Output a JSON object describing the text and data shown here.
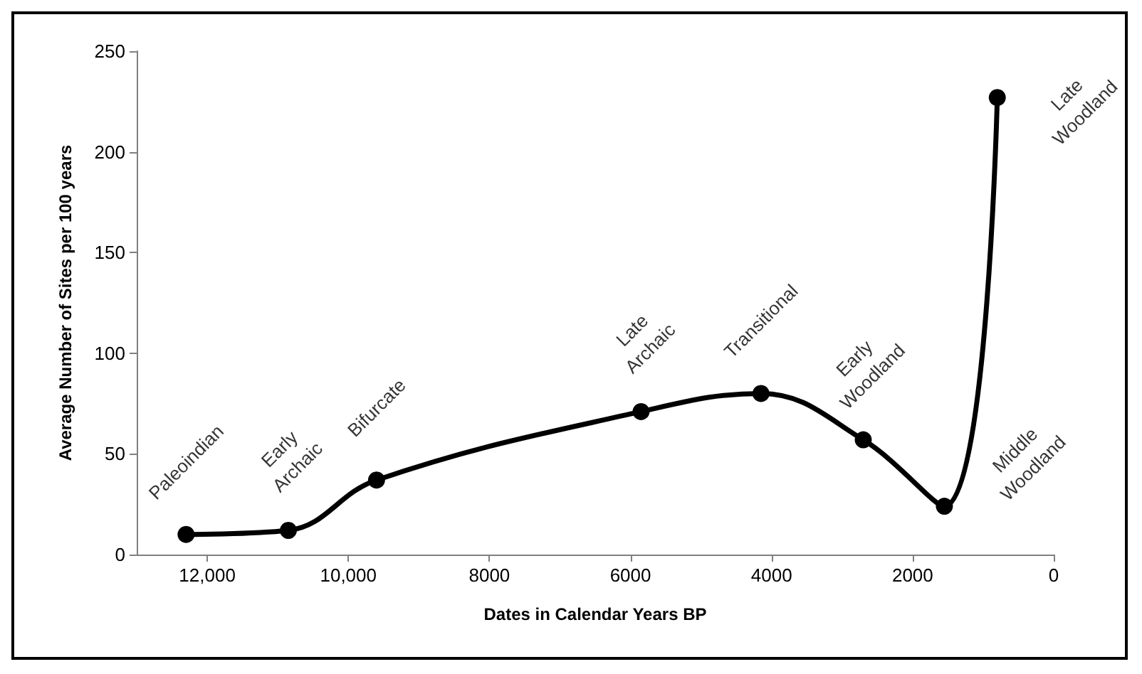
{
  "chart_data": {
    "type": "line",
    "xlabel": "Dates in Calendar Years BP",
    "ylabel": "Average Number of Sites per 100 years",
    "x": [
      12300,
      10850,
      9600,
      5850,
      4150,
      2700,
      1550,
      800
    ],
    "series": [
      {
        "color": "#000000",
        "values": [
          10,
          12,
          37,
          71,
          80,
          57,
          24,
          227
        ]
      }
    ],
    "xlim": [
      13000,
      0
    ],
    "xticks": [
      {
        "value": 12000,
        "label": "12,000"
      },
      {
        "value": 10000,
        "label": "10,000"
      },
      8000,
      6000,
      4000,
      2000,
      0
    ],
    "ylim": [
      0,
      250
    ],
    "yticks": [
      0,
      50,
      100,
      150,
      200,
      250
    ],
    "marker": "circle",
    "line_style": "solid",
    "grid": false,
    "annotations": [
      {
        "text": "Paleoindian",
        "x": 12300,
        "y": 10
      },
      {
        "text": "Early\nArchaic",
        "x": 10850,
        "y": 12
      },
      {
        "text": "Bifurcate",
        "x": 9600,
        "y": 37
      },
      {
        "text": "Late\nArchaic",
        "x": 5850,
        "y": 71
      },
      {
        "text": "Transitional",
        "x": 4150,
        "y": 80
      },
      {
        "text": "Early\nWoodland",
        "x": 2700,
        "y": 57
      },
      {
        "text": "Middle\nWoodland",
        "x": 1550,
        "y": 24
      },
      {
        "text": "Late\nWoodland",
        "x": 800,
        "y": 227
      }
    ]
  }
}
